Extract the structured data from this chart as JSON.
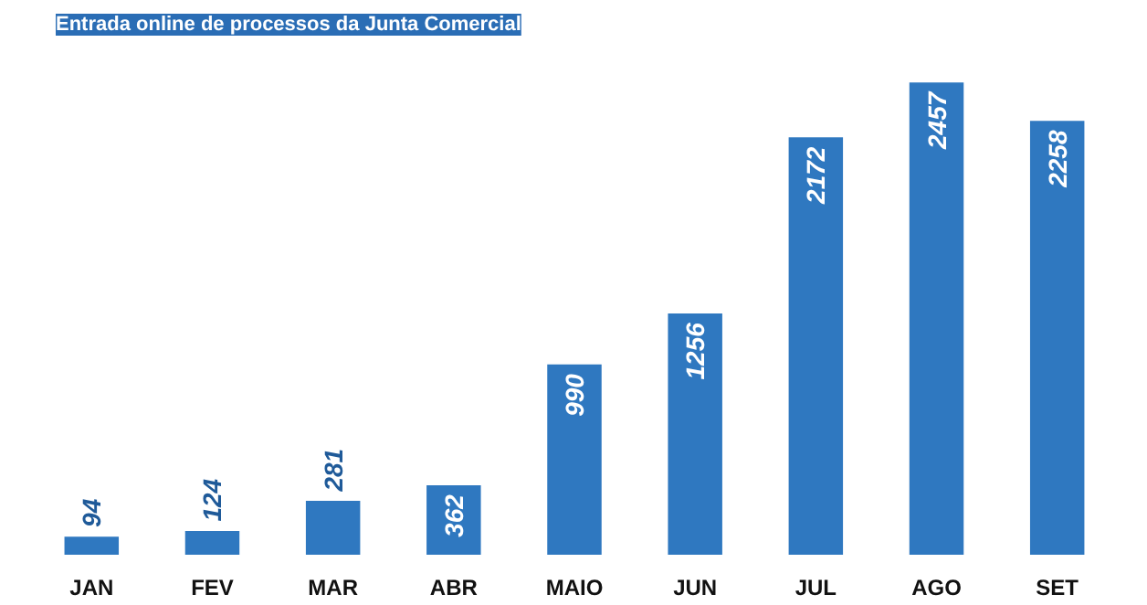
{
  "chart_data": {
    "type": "bar",
    "title": "Entrada online de processos da Junta Comercial",
    "categories": [
      "JAN",
      "FEV",
      "MAR",
      "ABR",
      "MAIO",
      "JUN",
      "JUL",
      "AGO",
      "SET"
    ],
    "values": [
      94,
      124,
      281,
      362,
      990,
      1256,
      2172,
      2457,
      2258
    ],
    "color": "#2f78c0",
    "data_labels": true,
    "grid": false
  }
}
